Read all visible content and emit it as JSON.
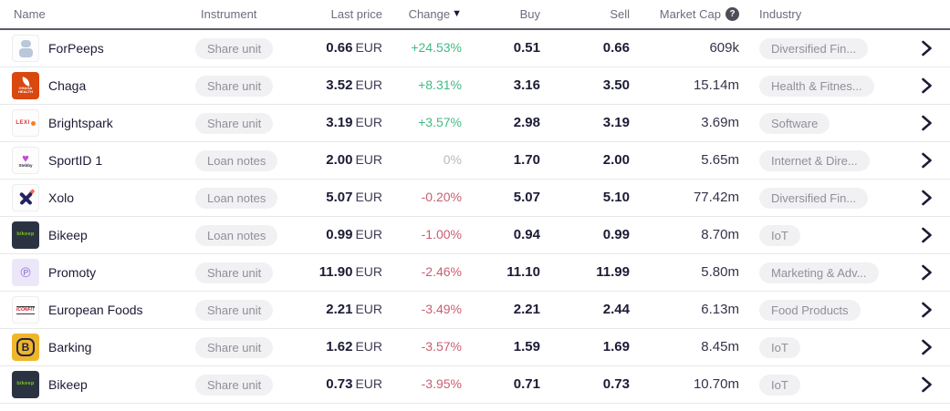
{
  "table": {
    "columns": {
      "name": "Name",
      "instrument": "Instrument",
      "last_price": "Last price",
      "change": "Change",
      "buy": "Buy",
      "sell": "Sell",
      "market_cap": "Market Cap",
      "industry": "Industry"
    },
    "sort_indicator": "▼",
    "market_cap_help": "?",
    "currency": "EUR",
    "rows": [
      {
        "name": "ForPeeps",
        "instrument": "Share unit",
        "last_price": "0.66",
        "change": "+24.53%",
        "change_dir": "up",
        "buy": "0.51",
        "sell": "0.66",
        "market_cap": "609k",
        "industry": "Diversified Fin...",
        "logo_kind": "forpeeps",
        "logo_text": ""
      },
      {
        "name": "Chaga",
        "instrument": "Share unit",
        "last_price": "3.52",
        "change": "+8.31%",
        "change_dir": "up",
        "buy": "3.16",
        "sell": "3.50",
        "market_cap": "15.14m",
        "industry": "Health & Fitnes...",
        "logo_kind": "chaga",
        "logo_text": "CHAGA HEALTH"
      },
      {
        "name": "Brightspark",
        "instrument": "Share unit",
        "last_price": "3.19",
        "change": "+3.57%",
        "change_dir": "up",
        "buy": "2.98",
        "sell": "3.19",
        "market_cap": "3.69m",
        "industry": "Software",
        "logo_kind": "lexi",
        "logo_text": "LEXI"
      },
      {
        "name": "SportID 1",
        "instrument": "Loan notes",
        "last_price": "2.00",
        "change": "0%",
        "change_dir": "zero",
        "buy": "1.70",
        "sell": "2.00",
        "market_cap": "5.65m",
        "industry": "Internet & Dire...",
        "logo_kind": "stebby",
        "logo_text": "Stebby"
      },
      {
        "name": "Xolo",
        "instrument": "Loan notes",
        "last_price": "5.07",
        "change": "-0.20%",
        "change_dir": "down",
        "buy": "5.07",
        "sell": "5.10",
        "market_cap": "77.42m",
        "industry": "Diversified Fin...",
        "logo_kind": "xolo",
        "logo_text": ""
      },
      {
        "name": "Bikeep",
        "instrument": "Loan notes",
        "last_price": "0.99",
        "change": "-1.00%",
        "change_dir": "down",
        "buy": "0.94",
        "sell": "0.99",
        "market_cap": "8.70m",
        "industry": "IoT",
        "logo_kind": "bikeep",
        "logo_text": "bikeep"
      },
      {
        "name": "Promoty",
        "instrument": "Share unit",
        "last_price": "11.90",
        "change": "-2.46%",
        "change_dir": "down",
        "buy": "11.10",
        "sell": "11.99",
        "market_cap": "5.80m",
        "industry": "Marketing & Adv...",
        "logo_kind": "promoty",
        "logo_text": "℗"
      },
      {
        "name": "European Foods",
        "instrument": "Share unit",
        "last_price": "2.21",
        "change": "-3.49%",
        "change_dir": "down",
        "buy": "2.21",
        "sell": "2.44",
        "market_cap": "6.13m",
        "industry": "Food Products",
        "logo_kind": "iconfit",
        "logo_text": "ICONFIT"
      },
      {
        "name": "Barking",
        "instrument": "Share unit",
        "last_price": "1.62",
        "change": "-3.57%",
        "change_dir": "down",
        "buy": "1.59",
        "sell": "1.69",
        "market_cap": "8.45m",
        "industry": "IoT",
        "logo_kind": "barking",
        "logo_text": "B"
      },
      {
        "name": "Bikeep",
        "instrument": "Share unit",
        "last_price": "0.73",
        "change": "-3.95%",
        "change_dir": "down",
        "buy": "0.71",
        "sell": "0.73",
        "market_cap": "10.70m",
        "industry": "IoT",
        "logo_kind": "bikeep",
        "logo_text": "bikeep"
      }
    ]
  },
  "colors": {
    "positive": "#43b984",
    "negative": "#c75f72",
    "neutral": "#b8b8c0",
    "text_dark": "#1b1b35",
    "header_text": "#6d6d7e",
    "pill_bg": "#f1f1f3"
  }
}
